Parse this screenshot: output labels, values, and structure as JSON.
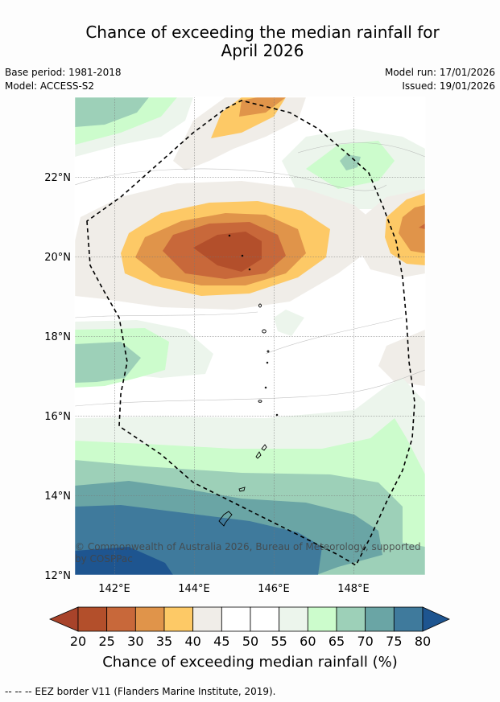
{
  "title_line1": "Chance of exceeding the median rainfall for",
  "title_line2": "April 2026",
  "base_period": "Base period: 1981-2018",
  "model": "Model: ACCESS-S2",
  "model_run": "Model run: 17/01/2026",
  "issued": "Issued: 19/01/2026",
  "copyright": "© Commonwealth of Australia 2026, Bureau of Meteorology, supported by COSPPac",
  "footer": "-- -- -- EEZ border V11 (Flanders Marine Institute, 2019).",
  "colorbar": {
    "label": "Chance of exceeding median rainfall (%)",
    "ticks": [
      "20",
      "25",
      "30",
      "35",
      "40",
      "45",
      "50",
      "55",
      "60",
      "65",
      "70",
      "75",
      "80"
    ],
    "colors": [
      "#a8432a",
      "#b34f2b",
      "#c8683a",
      "#e0944a",
      "#fdc966",
      "#f0ede8",
      "#ffffff",
      "#ffffff",
      "#ecf5ec",
      "#ccfccc",
      "#9dd0b8",
      "#6aa5a5",
      "#3f7a9c",
      "#1e5590"
    ]
  },
  "map": {
    "lat_labels": [
      "22°N",
      "20°N",
      "18°N",
      "16°N",
      "14°N",
      "12°N"
    ],
    "lon_labels": [
      "142°E",
      "144°E",
      "146°E",
      "148°E"
    ]
  }
}
